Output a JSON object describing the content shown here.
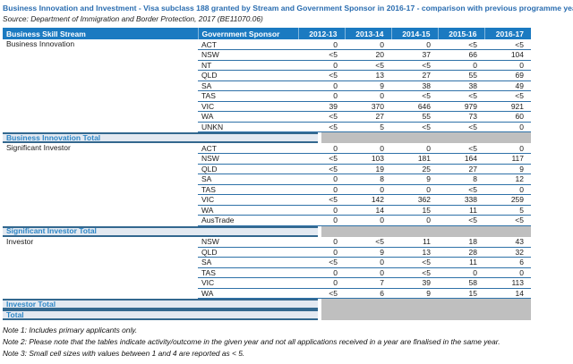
{
  "title": "Business Innovation and Investment - Visa subclass 188 granted by Stream and Government Sponsor in 2016-17 - comparison with previous programme year",
  "source": "Source: Department of Immigration and Border Protection, 2017 (BE11070.06)",
  "table": {
    "columns": [
      "Business Skill Stream",
      "Government Sponsor",
      "2012-13",
      "2013-14",
      "2014-15",
      "2015-16",
      "2016-17"
    ],
    "sections": [
      {
        "stream": "Business Innovation",
        "rows": [
          [
            "ACT",
            "0",
            "0",
            "0",
            "<5",
            "<5"
          ],
          [
            "NSW",
            "<5",
            "20",
            "37",
            "66",
            "104"
          ],
          [
            "NT",
            "0",
            "<5",
            "<5",
            "0",
            "0"
          ],
          [
            "QLD",
            "<5",
            "13",
            "27",
            "55",
            "69"
          ],
          [
            "SA",
            "0",
            "9",
            "38",
            "38",
            "49"
          ],
          [
            "TAS",
            "0",
            "0",
            "<5",
            "<5",
            "<5"
          ],
          [
            "VIC",
            "39",
            "370",
            "646",
            "979",
            "921"
          ],
          [
            "WA",
            "<5",
            "27",
            "55",
            "73",
            "60"
          ],
          [
            "UNKN",
            "<5",
            "5",
            "<5",
            "<5",
            "0"
          ]
        ],
        "total_label": "Business Innovation Total"
      },
      {
        "stream": "Significant Investor",
        "rows": [
          [
            "ACT",
            "0",
            "0",
            "0",
            "<5",
            "0"
          ],
          [
            "NSW",
            "<5",
            "103",
            "181",
            "164",
            "117"
          ],
          [
            "QLD",
            "<5",
            "19",
            "25",
            "27",
            "9"
          ],
          [
            "SA",
            "0",
            "8",
            "9",
            "8",
            "12"
          ],
          [
            "TAS",
            "0",
            "0",
            "0",
            "<5",
            "0"
          ],
          [
            "VIC",
            "<5",
            "142",
            "362",
            "338",
            "259"
          ],
          [
            "WA",
            "0",
            "14",
            "15",
            "11",
            "5"
          ],
          [
            "AusTrade",
            "0",
            "0",
            "0",
            "<5",
            "<5"
          ]
        ],
        "total_label": "Significant Investor Total"
      },
      {
        "stream": "Investor",
        "rows": [
          [
            "NSW",
            "0",
            "<5",
            "11",
            "18",
            "43"
          ],
          [
            "QLD",
            "0",
            "9",
            "13",
            "28",
            "32"
          ],
          [
            "SA",
            "<5",
            "0",
            "<5",
            "11",
            "6"
          ],
          [
            "TAS",
            "0",
            "0",
            "<5",
            "0",
            "0"
          ],
          [
            "VIC",
            "0",
            "7",
            "39",
            "58",
            "113"
          ],
          [
            "WA",
            "<5",
            "6",
            "9",
            "15",
            "14"
          ]
        ],
        "total_label": "Investor Total"
      }
    ],
    "grand_total_label": "Total"
  },
  "notes": [
    "Note 1: Includes primary applicants only.",
    "Note 2: Please note that the tables indicate activity/outcome in the given year and not all applications received in a year are finalised in the same year.",
    "Note 3: Small cell sizes with values between 1 and 4 are reported as < 5."
  ],
  "colors": {
    "header_bg": "#1b7ac1",
    "header_text": "#ffffff",
    "row_border": "#2e71a8",
    "total_band_bg": "#e3e9f1",
    "total_band_border": "#33688f",
    "total_text": "#2e86c6",
    "suppressed_cell_bg": "#bfbfbf",
    "title_text": "#2a6db0"
  }
}
